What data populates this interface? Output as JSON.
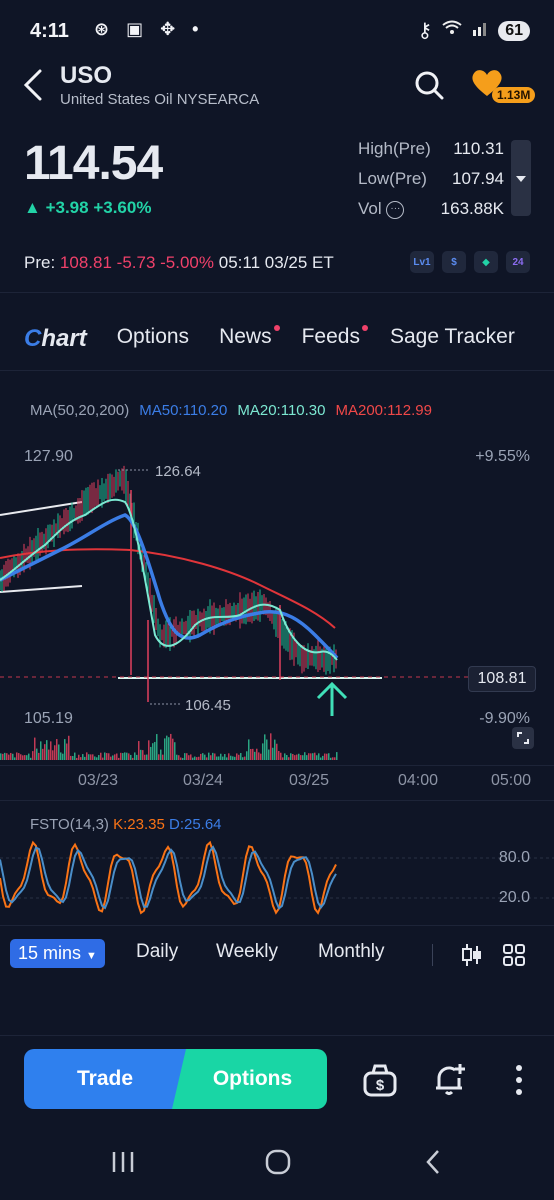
{
  "status_bar": {
    "time": "4:11",
    "icons": "⊛ ▣ ✥ •",
    "battery": "61"
  },
  "header": {
    "ticker": "USO",
    "exchange": "United States Oil NYSEARCA",
    "followers": "1.13M"
  },
  "quote": {
    "price": "114.54",
    "change": "+3.98",
    "change_pct": "+3.60%",
    "high_label": "High(Pre)",
    "high_value": "110.31",
    "low_label": "Low(Pre)",
    "low_value": "107.94",
    "vol_label": "Vol",
    "vol_value": "163.88K",
    "pre_label": "Pre:",
    "pre_price": "108.81",
    "pre_change": "-5.73",
    "pre_change_pct": "-5.00%",
    "pre_time": "05:11 03/25 ET"
  },
  "badges": [
    "Lv1",
    "$",
    "◆",
    "24"
  ],
  "tabs": [
    {
      "label": "Options",
      "dot": false
    },
    {
      "label": "News",
      "dot": true
    },
    {
      "label": "Feeds",
      "dot": true
    },
    {
      "label": "Sage Tracker",
      "dot": false
    }
  ],
  "tab_chart": {
    "c": "C",
    "rest": "hart"
  },
  "ma_legend": {
    "title": "MA(50,20,200)",
    "ma50": "MA50:110.20",
    "ma20": "MA20:110.30",
    "ma200": "MA200:112.99"
  },
  "chart_labels": {
    "top_price": "127.90",
    "top_pct": "+9.55%",
    "high_marker": "126.64",
    "low_marker": "106.45",
    "bottom_price": "105.19",
    "bottom_pct": "-9.90%",
    "last_price": "108.81"
  },
  "time_axis": [
    "03/23",
    "03/24",
    "03/25",
    "04:00",
    "05:00"
  ],
  "oscillator": {
    "title": "FSTO(14,3)",
    "k": "K:23.35",
    "d": "D:25.64",
    "level_high": "80.0",
    "level_low": "20.0"
  },
  "timeframes": {
    "selected": "15 mins",
    "daily": "Daily",
    "weekly": "Weekly",
    "monthly": "Monthly"
  },
  "actions": {
    "trade": "Trade",
    "options": "Options"
  },
  "colors": {
    "bg": "#0f1526",
    "green": "#22d3a7",
    "red": "#f0416a",
    "blue": "#3b7de6",
    "ma20": "#7ce8d2",
    "ma200": "#e0353a"
  }
}
